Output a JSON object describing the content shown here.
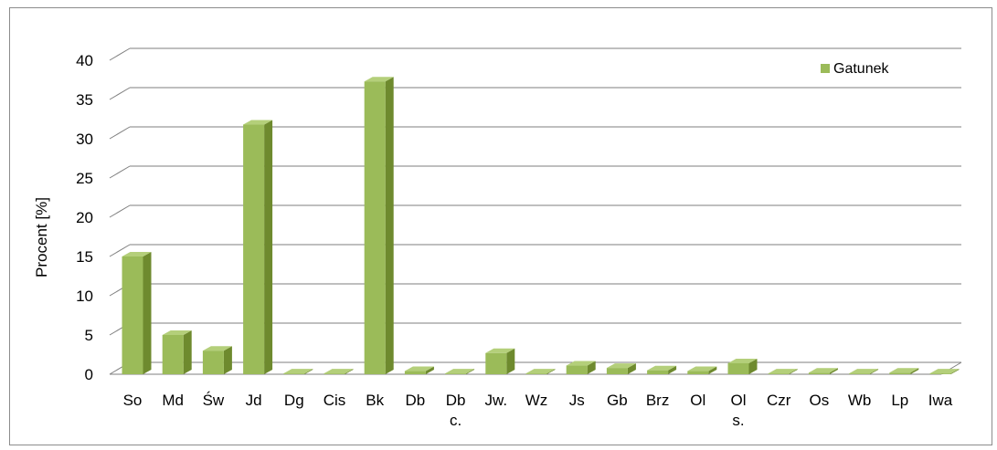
{
  "chart_data": {
    "type": "bar",
    "categories": [
      "So",
      "Md",
      "Św",
      "Jd",
      "Dg",
      "Cis",
      "Bk",
      "Db",
      "Db\nc.",
      "Jw.",
      "Wz",
      "Js",
      "Gb",
      "Brz",
      "Ol",
      "Ol\ns.",
      "Czr",
      "Os",
      "Wb",
      "Lp",
      "Iwa"
    ],
    "series": [
      {
        "name": "Gatunek",
        "values": [
          15,
          5,
          3,
          31.8,
          0.1,
          0.1,
          37.3,
          0.4,
          0.1,
          2.7,
          0.1,
          1.1,
          0.8,
          0.5,
          0.4,
          1.4,
          0.1,
          0.2,
          0.1,
          0.2,
          0.1
        ]
      }
    ],
    "ylabel": "Procent [%]",
    "xlabel": "",
    "ylim": [
      0,
      40
    ],
    "yticks": [
      0,
      5,
      10,
      15,
      20,
      25,
      30,
      35,
      40
    ],
    "grid": true,
    "legend_position": "top-right",
    "colors": {
      "front": "#9bbb59",
      "side": "#6e8a2e",
      "top": "#b4cf7a",
      "grid": "#7f7f7f"
    }
  }
}
